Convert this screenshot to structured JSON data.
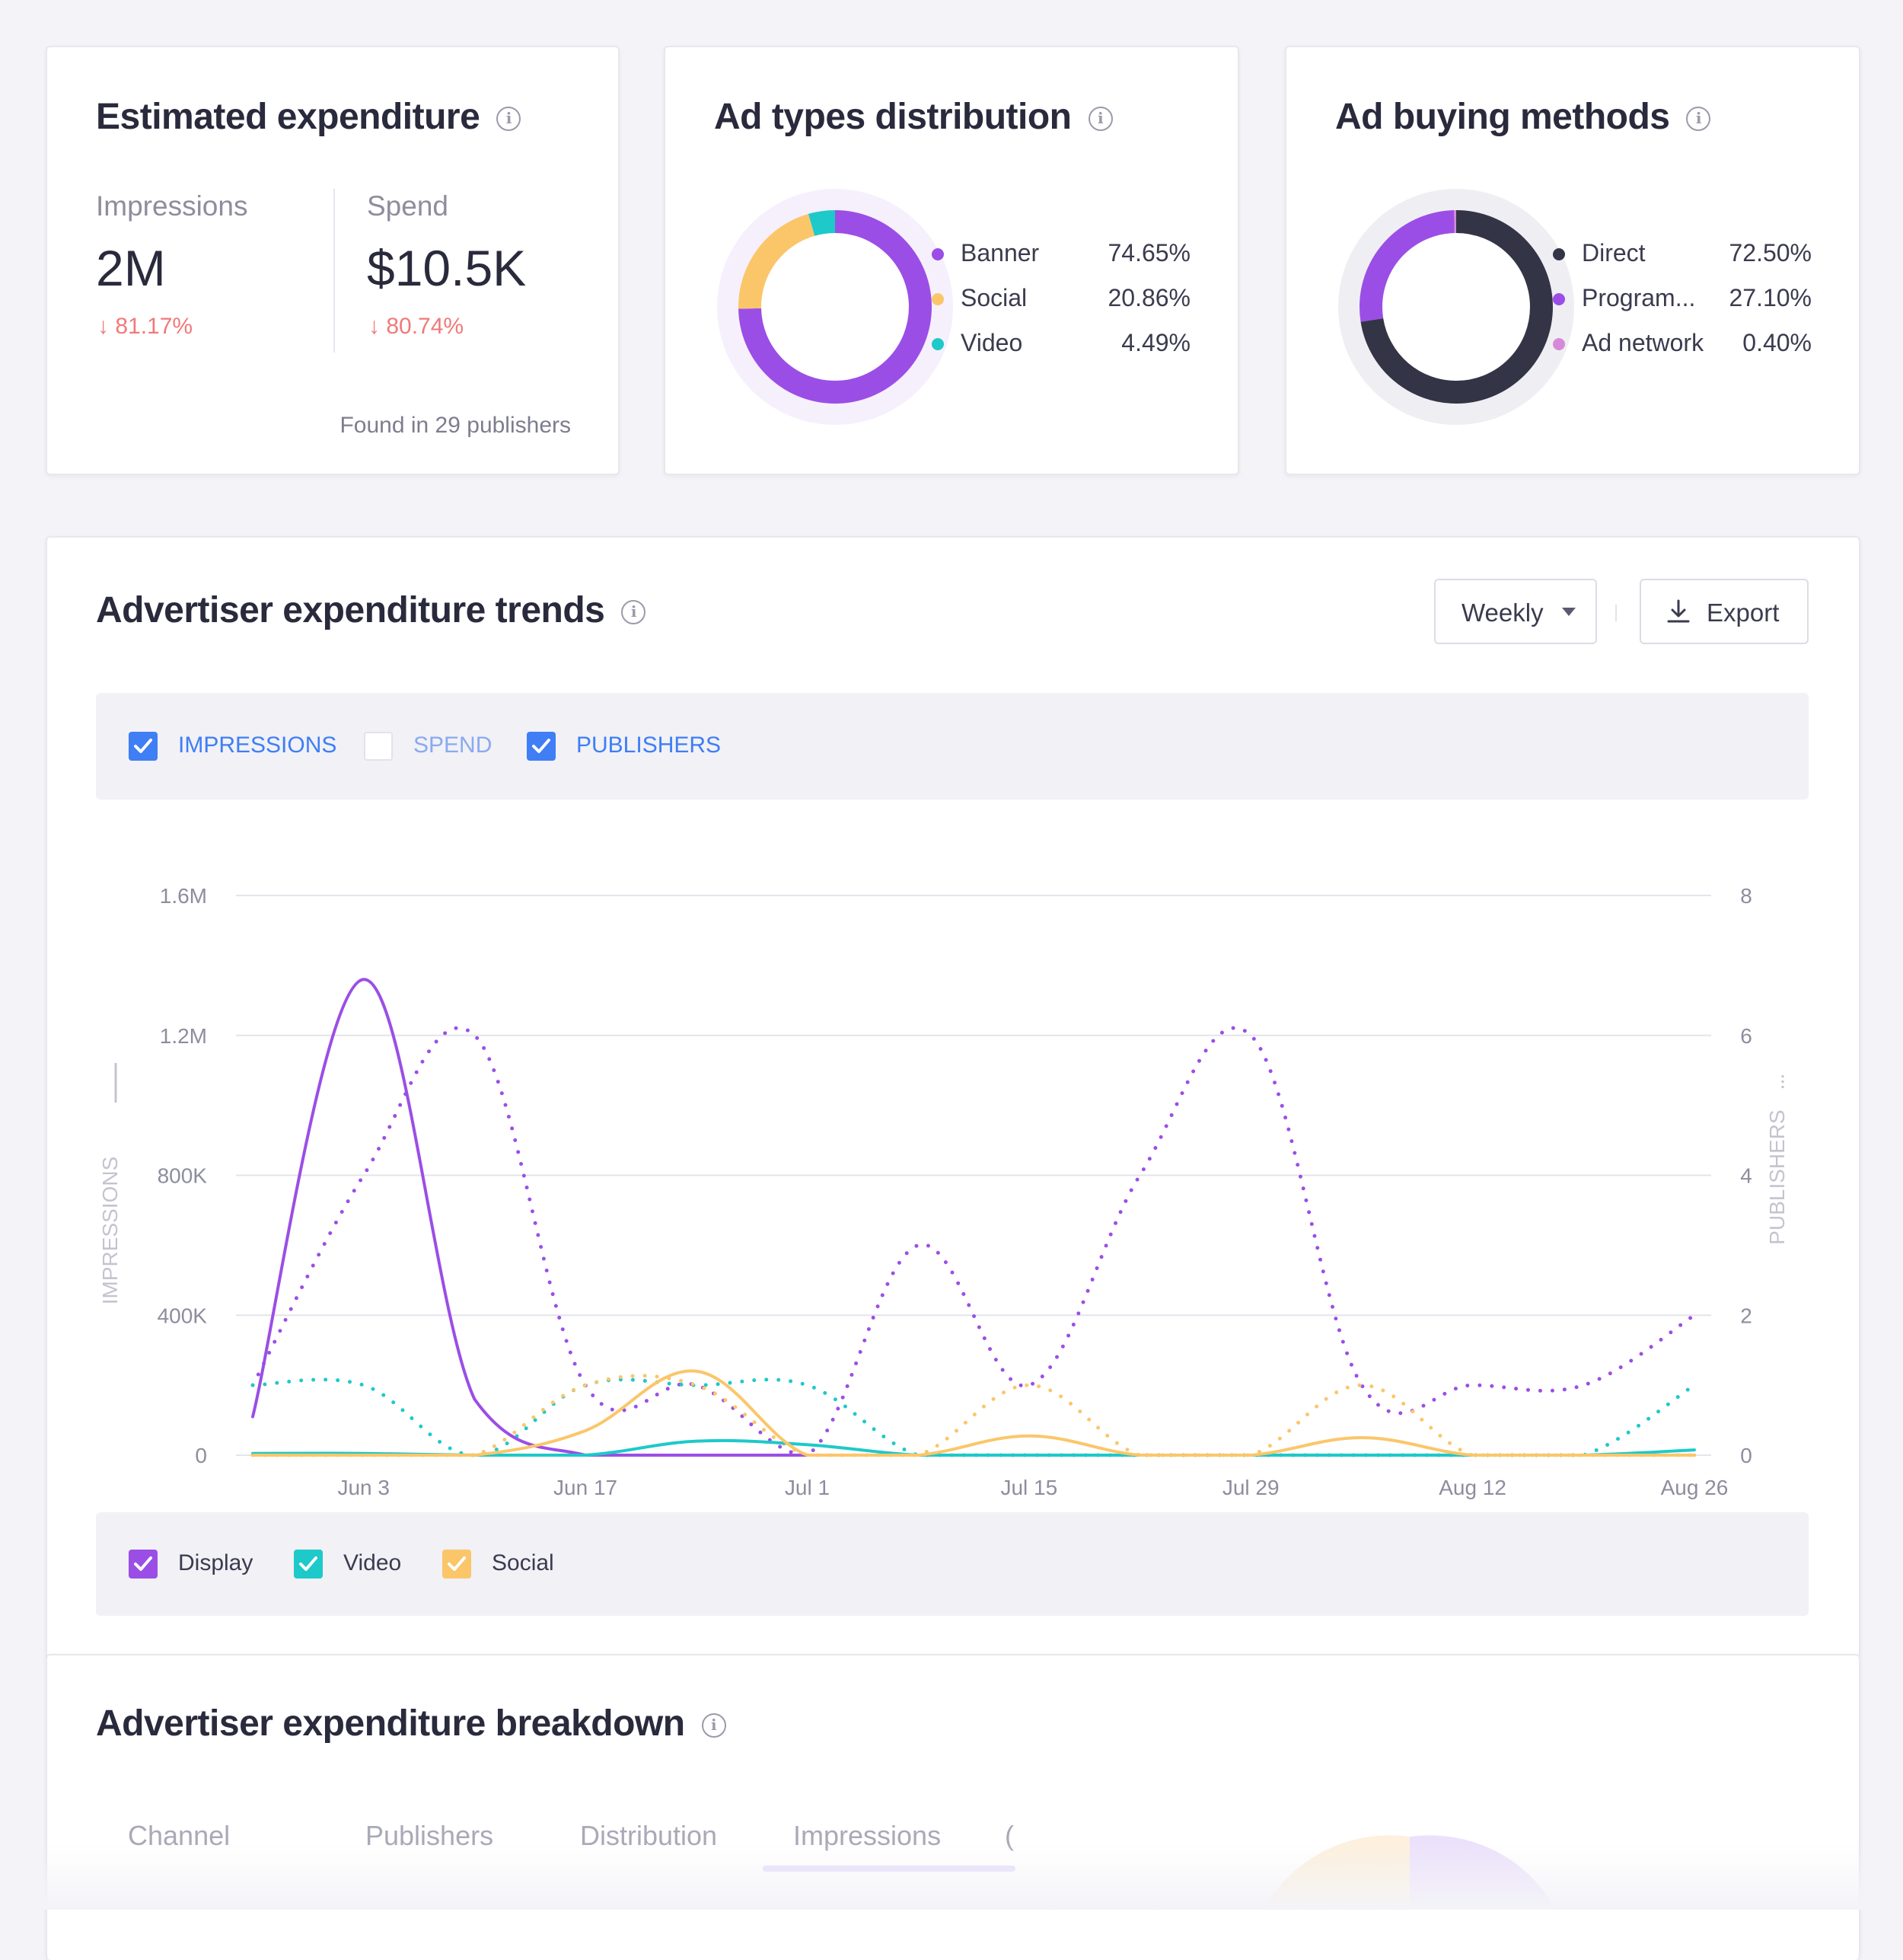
{
  "expenditure": {
    "title": "Estimated expenditure",
    "impressions_label": "Impressions",
    "impressions_value": "2M",
    "impressions_change": "81.17%",
    "spend_label": "Spend",
    "spend_value": "$10.5K",
    "spend_change": "80.74%",
    "found": "Found in 29 publishers"
  },
  "ad_types": {
    "title": "Ad types distribution",
    "items": [
      {
        "label": "Banner",
        "pct": "74.65%",
        "value": 74.65,
        "color": "#9b4ee6"
      },
      {
        "label": "Social",
        "pct": "20.86%",
        "value": 20.86,
        "color": "#fbc66a"
      },
      {
        "label": "Video",
        "pct": "4.49%",
        "value": 4.49,
        "color": "#1ec9c9"
      }
    ]
  },
  "buying": {
    "title": "Ad buying methods",
    "items": [
      {
        "label": "Direct",
        "pct": "72.50%",
        "value": 72.5,
        "color": "#343447"
      },
      {
        "label": "Program...",
        "pct": "27.10%",
        "value": 27.1,
        "color": "#9b4ee6"
      },
      {
        "label": "Ad network",
        "pct": "0.40%",
        "value": 0.4,
        "color": "#d58ad8"
      }
    ]
  },
  "trends": {
    "title": "Advertiser expenditure trends",
    "interval": "Weekly",
    "export": "Export",
    "metrics": [
      {
        "label": "IMPRESSIONS",
        "checked": true
      },
      {
        "label": "SPEND",
        "checked": false
      },
      {
        "label": "PUBLISHERS",
        "checked": true
      }
    ],
    "series_toggles": [
      {
        "label": "Display",
        "color": "#9b4ee6"
      },
      {
        "label": "Video",
        "color": "#1ec9c9"
      },
      {
        "label": "Social",
        "color": "#fbc66a"
      }
    ]
  },
  "chart_data": {
    "type": "line",
    "x": [
      "May 27",
      "Jun 3",
      "Jun 10",
      "Jun 17",
      "Jun 24",
      "Jul 1",
      "Jul 8",
      "Jul 15",
      "Jul 22",
      "Jul 29",
      "Aug 5",
      "Aug 12",
      "Aug 19",
      "Aug 26"
    ],
    "x_tick_labels": [
      "Jun 3",
      "Jun 17",
      "Jul 1",
      "Jul 15",
      "Jul 29",
      "Aug 12",
      "Aug 26"
    ],
    "ylabel": "IMPRESSIONS",
    "y2label": "PUBLISHERS",
    "y_tick_labels": [
      "0",
      "400K",
      "800K",
      "1.2M",
      "1.6M"
    ],
    "y2_tick_labels": [
      "0",
      "2",
      "4",
      "6",
      "8"
    ],
    "ylim": [
      0,
      1600000
    ],
    "y2lim": [
      0,
      8
    ],
    "grid": true,
    "series": [
      {
        "name": "Display",
        "axis": "impressions",
        "style": "solid",
        "color": "#9b4ee6",
        "values": [
          110000,
          1360000,
          160000,
          0,
          0,
          0,
          0,
          0,
          0,
          0,
          0,
          0,
          0,
          0
        ]
      },
      {
        "name": "Video",
        "axis": "impressions",
        "style": "solid",
        "color": "#1ec9c9",
        "values": [
          5000,
          5000,
          0,
          0,
          40000,
          30000,
          0,
          0,
          0,
          0,
          0,
          0,
          0,
          15000
        ]
      },
      {
        "name": "Social",
        "axis": "impressions",
        "style": "solid",
        "color": "#fbc66a",
        "values": [
          0,
          0,
          0,
          70000,
          240000,
          0,
          0,
          55000,
          0,
          0,
          50000,
          0,
          0,
          0
        ]
      },
      {
        "name": "Display",
        "axis": "publishers",
        "style": "dotted",
        "color": "#9b4ee6",
        "values": [
          1,
          4,
          6,
          1,
          1,
          0,
          3,
          1,
          4,
          6,
          1,
          1,
          1,
          2
        ]
      },
      {
        "name": "Video",
        "axis": "publishers",
        "style": "dotted",
        "color": "#1ec9c9",
        "values": [
          1,
          1,
          0,
          1,
          1,
          1,
          0,
          0,
          0,
          0,
          0,
          0,
          0,
          1
        ]
      },
      {
        "name": "Social",
        "axis": "publishers",
        "style": "dotted",
        "color": "#fbc66a",
        "values": [
          0,
          0,
          0,
          1,
          1,
          0,
          0,
          1,
          0,
          0,
          1,
          0,
          0,
          0
        ]
      }
    ]
  },
  "breakdown": {
    "title": "Advertiser expenditure breakdown",
    "tabs": [
      "Channel",
      "Publishers",
      "Distribution",
      "Impressions",
      "("
    ]
  }
}
